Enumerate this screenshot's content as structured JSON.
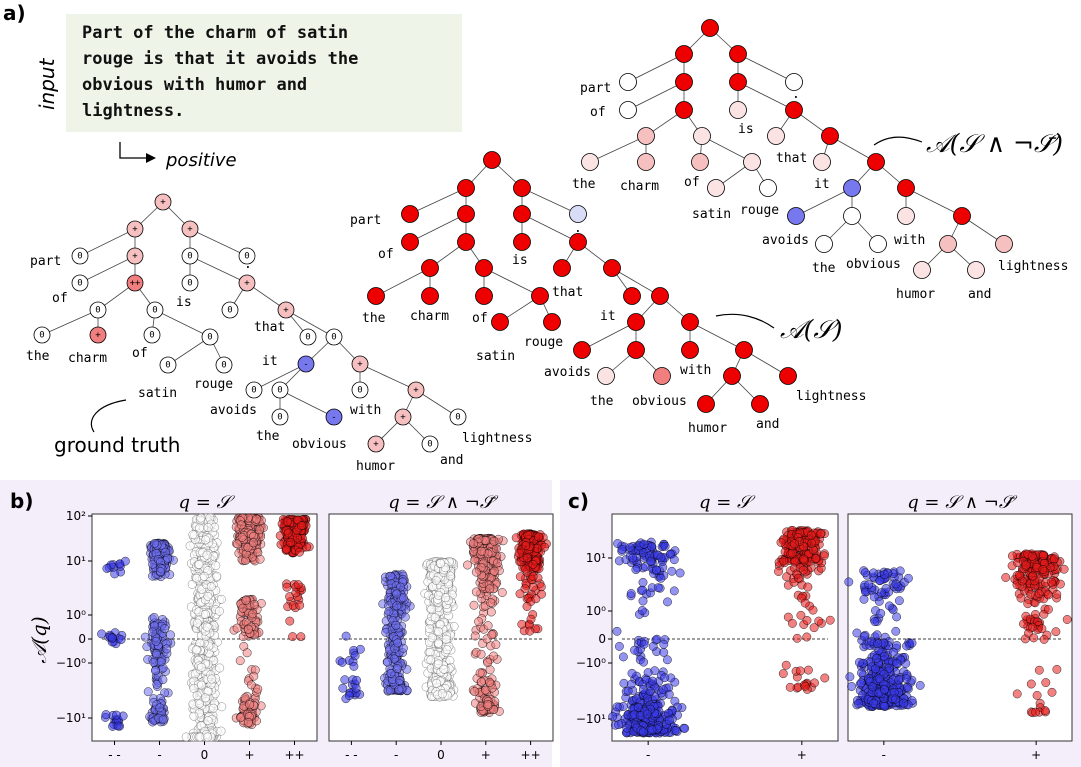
{
  "panel_labels": {
    "a": "a)",
    "b": "b)",
    "c": "c)"
  },
  "input": {
    "side_label": "input",
    "lines": [
      "Part of the charm of satin",
      "rouge is that it avoids the",
      "obvious with humor and",
      "lightness."
    ],
    "output_label": "positive"
  },
  "trees": {
    "ground_truth_label": "ground truth",
    "middle_label": "𝒜(𝒮)",
    "right_label": "𝒜(𝒮 ∧ ¬𝒮̄)"
  },
  "words": [
    "part",
    "of",
    "the",
    "charm",
    "of",
    "satin",
    "rouge",
    "is",
    ".",
    "that",
    "it",
    "avoids",
    "the",
    "obvious",
    "with",
    "humor",
    "and",
    "lightness"
  ],
  "colors": {
    "strong_red": "#ee0000",
    "red": "#f27f7f",
    "pink": "#f6c0c0",
    "light_pink": "#fbe3e3",
    "white": "#ffffff",
    "blue": "#7777ee",
    "light_blue": "#d9dcf7",
    "panel_bg": "#f3eef9"
  },
  "chart_data": [
    {
      "panel": "b",
      "type": "scatter",
      "title": "q = 𝒮",
      "ylabel": "𝒜(q)",
      "yscale": "symlog",
      "yticks": [
        "10²",
        "10¹",
        "10⁰",
        "0",
        "−10⁰",
        "−10¹"
      ],
      "categories": [
        "- -",
        "-",
        "0",
        "+",
        "++"
      ],
      "ylim": [
        -20,
        100
      ]
    },
    {
      "panel": "b",
      "type": "scatter",
      "title": "q = 𝒮 ∧ ¬𝒮̄",
      "yscale": "symlog",
      "categories": [
        "- -",
        "-",
        "0",
        "+",
        "++"
      ]
    },
    {
      "panel": "c",
      "type": "scatter",
      "title": "q = 𝒮",
      "yscale": "symlog",
      "yticks": [
        "10¹",
        "10⁰",
        "0",
        "−10⁰",
        "−10¹"
      ],
      "categories": [
        "-",
        "+"
      ]
    },
    {
      "panel": "c",
      "type": "scatter",
      "title": "q = 𝒮 ∧ ¬𝒮̄",
      "yscale": "symlog",
      "categories": [
        "-",
        "+"
      ]
    }
  ]
}
